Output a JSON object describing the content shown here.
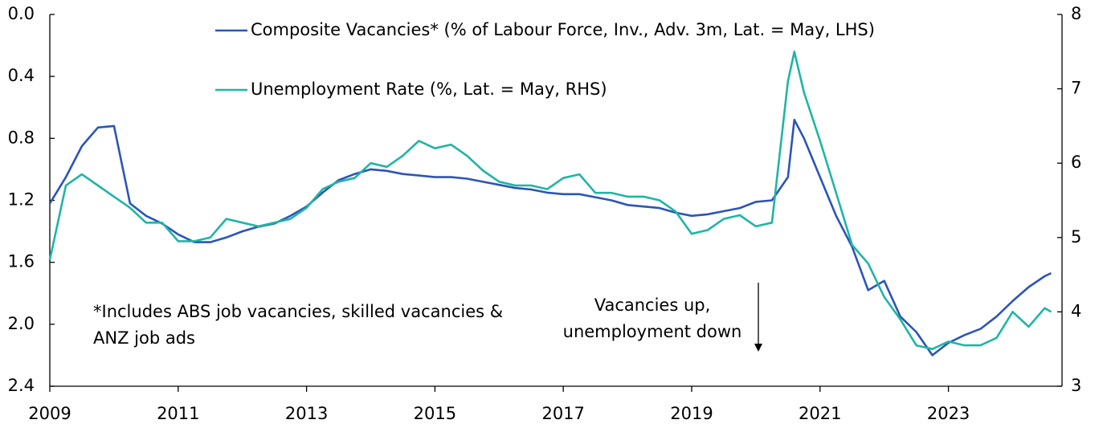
{
  "chart_data": {
    "type": "line",
    "x": [
      2009.0,
      2009.25,
      2009.5,
      2009.75,
      2010.0,
      2010.25,
      2010.5,
      2010.75,
      2011.0,
      2011.25,
      2011.5,
      2011.75,
      2012.0,
      2012.25,
      2012.5,
      2012.75,
      2013.0,
      2013.25,
      2013.5,
      2013.75,
      2014.0,
      2014.25,
      2014.5,
      2014.75,
      2015.0,
      2015.25,
      2015.5,
      2015.75,
      2016.0,
      2016.25,
      2016.5,
      2016.75,
      2017.0,
      2017.25,
      2017.5,
      2017.75,
      2018.0,
      2018.25,
      2018.5,
      2018.75,
      2019.0,
      2019.25,
      2019.5,
      2019.75,
      2020.0,
      2020.25,
      2020.5,
      2020.6,
      2020.75,
      2021.0,
      2021.25,
      2021.5,
      2021.75,
      2022.0,
      2022.25,
      2022.5,
      2022.75,
      2023.0,
      2023.25,
      2023.5,
      2023.75,
      2024.0,
      2024.25,
      2024.5,
      2024.6
    ],
    "series": [
      {
        "name": "Composite Vacancies* (% of Labour Force, Inv., Adv. 3m, Lat. = May, LHS)",
        "color": "#2b55b8",
        "axis": "y",
        "values": [
          1.22,
          1.05,
          0.85,
          0.73,
          0.72,
          1.22,
          1.3,
          1.35,
          1.42,
          1.47,
          1.47,
          1.44,
          1.4,
          1.37,
          1.35,
          1.3,
          1.24,
          1.15,
          1.07,
          1.03,
          1.0,
          1.01,
          1.03,
          1.04,
          1.05,
          1.05,
          1.06,
          1.08,
          1.1,
          1.12,
          1.13,
          1.15,
          1.16,
          1.16,
          1.18,
          1.2,
          1.23,
          1.24,
          1.25,
          1.28,
          1.3,
          1.29,
          1.27,
          1.25,
          1.21,
          1.2,
          1.05,
          0.68,
          0.8,
          1.05,
          1.3,
          1.5,
          1.78,
          1.72,
          1.95,
          2.05,
          2.2,
          2.12,
          2.07,
          2.03,
          1.95,
          1.85,
          1.76,
          1.69,
          1.67
        ]
      },
      {
        "name": "Unemployment Rate (%, Lat. = May, RHS)",
        "color": "#1fb5a5",
        "axis": "y2",
        "values": [
          4.7,
          5.7,
          5.85,
          5.7,
          5.55,
          5.4,
          5.2,
          5.2,
          4.95,
          4.95,
          5.0,
          5.25,
          5.2,
          5.15,
          5.2,
          5.25,
          5.4,
          5.65,
          5.75,
          5.8,
          6.0,
          5.95,
          6.1,
          6.3,
          6.2,
          6.25,
          6.1,
          5.9,
          5.75,
          5.7,
          5.7,
          5.65,
          5.8,
          5.85,
          5.6,
          5.6,
          5.55,
          5.55,
          5.5,
          5.35,
          5.05,
          5.1,
          5.25,
          5.3,
          5.15,
          5.2,
          7.1,
          7.5,
          6.95,
          6.3,
          5.6,
          4.9,
          4.65,
          4.2,
          3.9,
          3.55,
          3.5,
          3.6,
          3.55,
          3.55,
          3.65,
          4.0,
          3.8,
          4.05,
          4.0
        ]
      }
    ],
    "xlim": [
      2009,
      2024.77
    ],
    "xticks": [
      2009,
      2011,
      2013,
      2015,
      2017,
      2019,
      2021,
      2023
    ],
    "ylim": [
      0,
      2.4
    ],
    "y_inverted": true,
    "yticks": [
      {
        "value": 0,
        "label": "0.0"
      },
      0.4,
      0.8,
      1.2,
      1.6,
      {
        "value": 2,
        "label": "2.0"
      },
      2.4
    ],
    "y2lim": [
      3,
      8
    ],
    "y2ticks": [
      3,
      4,
      5,
      6,
      7,
      8
    ],
    "annotations": [
      {
        "lines": [
          "*Includes ABS job vacancies, skilled vacancies &",
          "ANZ job ads"
        ]
      },
      {
        "lines": [
          "Vacancies up,",
          "unemployment down"
        ]
      }
    ]
  }
}
